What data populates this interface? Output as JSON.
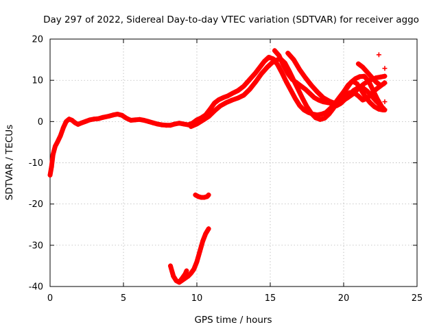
{
  "chart_data": {
    "type": "scatter",
    "title": "Day 297 of 2022, Sidereal Day-to-day VTEC variation (SDTVAR) for receiver aggo",
    "xlabel": "GPS time / hours",
    "ylabel": "SDTVAR / TECUs",
    "xlim": [
      0,
      25
    ],
    "ylim": [
      -40,
      20
    ],
    "xticks": [
      "0",
      "5",
      "10",
      "15",
      "20",
      "25"
    ],
    "yticks": [
      "20",
      "10",
      "0",
      "-10",
      "-20",
      "-30",
      "-40"
    ],
    "grid": true,
    "marker": "plus",
    "color": "#ff0000",
    "series": [
      {
        "name": "main-1",
        "x": [
          0.0,
          0.1,
          0.2,
          0.35,
          0.5,
          0.7,
          0.9,
          1.1,
          1.3,
          1.5,
          1.7,
          1.9,
          2.1,
          2.4,
          2.7,
          3.0,
          3.3,
          3.6,
          4.0,
          4.3,
          4.6,
          4.9,
          5.2,
          5.5,
          5.8,
          6.1,
          6.4,
          6.7,
          7.0,
          7.3,
          7.6,
          7.9,
          8.2,
          8.5,
          8.8,
          9.1,
          9.4,
          9.7,
          10.0,
          10.3,
          10.6,
          10.9,
          11.2,
          11.5,
          11.8,
          12.1,
          12.4,
          12.8,
          13.2,
          13.6,
          14.0,
          14.3,
          14.6,
          14.9,
          15.2,
          15.5,
          15.8,
          16.1,
          16.4,
          16.7,
          17.0,
          17.3,
          17.6,
          17.9,
          18.2,
          18.5,
          18.8,
          19.1,
          19.4,
          19.7,
          20.0,
          20.3,
          20.6,
          20.9,
          21.2,
          21.5,
          21.8,
          22.1,
          22.4,
          22.7
        ],
        "y": [
          -13,
          -11,
          -8,
          -6,
          -5,
          -3.5,
          -1.5,
          0,
          0.6,
          0.3,
          -0.3,
          -0.7,
          -0.4,
          0,
          0.4,
          0.6,
          0.7,
          1.0,
          1.3,
          1.6,
          1.8,
          1.5,
          0.8,
          0.3,
          0.4,
          0.5,
          0.3,
          0,
          -0.3,
          -0.6,
          -0.8,
          -0.9,
          -0.9,
          -0.6,
          -0.4,
          -0.6,
          -0.8,
          -0.4,
          0.4,
          0.9,
          1.6,
          3.0,
          4.5,
          5.3,
          5.8,
          6.2,
          6.8,
          7.5,
          8.6,
          10.2,
          11.8,
          13.2,
          14.6,
          15.6,
          15.2,
          13.8,
          11.8,
          9.6,
          7.6,
          5.6,
          3.9,
          2.8,
          2.2,
          1.8,
          1.6,
          1.8,
          2.2,
          3.2,
          4.4,
          5.8,
          7.2,
          8.8,
          9.8,
          9.2,
          7.6,
          5.9,
          4.6,
          3.6,
          3.0,
          2.8
        ]
      },
      {
        "name": "main-2",
        "x": [
          9.6,
          10.0,
          10.4,
          10.8,
          11.2,
          11.6,
          12.0,
          12.4,
          12.8,
          13.2,
          13.6,
          14.0,
          14.4,
          14.8,
          15.1,
          15.4,
          15.7,
          16.0,
          16.3,
          16.6,
          16.9,
          17.2,
          17.5,
          17.8,
          18.1,
          18.4,
          18.7,
          19.0,
          19.3,
          19.6,
          19.9,
          20.2,
          20.5,
          20.8,
          21.1,
          21.4,
          21.7,
          22.0,
          22.3,
          22.6,
          22.8
        ],
        "y": [
          -1.2,
          -0.6,
          0.3,
          1.2,
          2.6,
          3.8,
          4.6,
          5.2,
          5.7,
          6.4,
          7.8,
          9.6,
          11.6,
          13.2,
          14.2,
          14.9,
          15.2,
          14.2,
          12.2,
          10.0,
          7.8,
          5.6,
          3.6,
          2.0,
          0.9,
          0.5,
          0.8,
          1.8,
          3.2,
          4.8,
          6.4,
          8.0,
          9.5,
          10.4,
          10.9,
          11.0,
          9.8,
          7.6,
          5.4,
          3.6,
          2.8
        ]
      },
      {
        "name": "main-3",
        "x": [
          15.3,
          15.6,
          15.9,
          16.2,
          16.5,
          16.8,
          17.1,
          17.4,
          17.7,
          18.0,
          18.3,
          18.6,
          18.9,
          19.2,
          19.5,
          19.8,
          20.1,
          20.4,
          20.7,
          21.0,
          21.3,
          21.6,
          21.9,
          22.2,
          22.5,
          22.8
        ],
        "y": [
          17.2,
          16.0,
          13.6,
          11.6,
          10.2,
          9.4,
          8.6,
          7.8,
          6.8,
          5.8,
          5.2,
          4.8,
          4.6,
          4.4,
          4.2,
          4.6,
          6.0,
          7.0,
          7.0,
          6.2,
          5.2,
          5.6,
          6.8,
          7.8,
          8.6,
          9.4
        ]
      },
      {
        "name": "main-4",
        "x": [
          16.2,
          16.6,
          17.0,
          17.4,
          17.8,
          18.2,
          18.6,
          19.0,
          19.4,
          19.8,
          20.2,
          20.6,
          21.0,
          21.4,
          21.8,
          22.2,
          22.5,
          22.8
        ],
        "y": [
          16.6,
          15.0,
          12.6,
          10.6,
          8.8,
          7.2,
          5.8,
          5.0,
          4.4,
          4.8,
          5.6,
          6.6,
          8.0,
          9.2,
          10.0,
          10.6,
          10.8,
          11.0
        ]
      },
      {
        "name": "main-5",
        "x": [
          19.5,
          19.8,
          20.1,
          20.4,
          20.7,
          21.0,
          21.3,
          21.6,
          21.9,
          22.2,
          22.5
        ],
        "y": [
          3.8,
          4.4,
          5.4,
          6.6,
          7.6,
          8.2,
          8.2,
          7.4,
          6.2,
          5.0,
          4.0
        ]
      },
      {
        "name": "main-6",
        "x": [
          21.0,
          21.3,
          21.6,
          21.9,
          22.2,
          22.5
        ],
        "y": [
          14.0,
          13.2,
          12.0,
          10.8,
          9.6,
          8.8
        ]
      },
      {
        "name": "segment-outlier-curve",
        "x": [
          8.2,
          8.4,
          8.6,
          8.8,
          9.0,
          9.2,
          9.4,
          9.6,
          9.8,
          10.0,
          10.2,
          10.4,
          10.6,
          10.8
        ],
        "y": [
          -35,
          -37.5,
          -38.6,
          -39.0,
          -38.5,
          -38.0,
          -37.5,
          -36.8,
          -35.8,
          -34.0,
          -31.5,
          -29.0,
          -27.2,
          -26.0
        ]
      },
      {
        "name": "segment-outlier-hook",
        "x": [
          8.8,
          9.0,
          9.2,
          9.3
        ],
        "y": [
          -38.9,
          -38.0,
          -37.0,
          -36.2
        ]
      },
      {
        "name": "segment-outlier-flat",
        "x": [
          9.9,
          10.1,
          10.3,
          10.5,
          10.7,
          10.8
        ],
        "y": [
          -17.8,
          -18.2,
          -18.4,
          -18.4,
          -18.2,
          -17.8
        ]
      }
    ],
    "extra_points": {
      "x": [
        22.4,
        22.8,
        22.8,
        22.8,
        22.8
      ],
      "y": [
        16.2,
        12.9,
        9.2,
        4.8,
        3.0
      ]
    }
  }
}
